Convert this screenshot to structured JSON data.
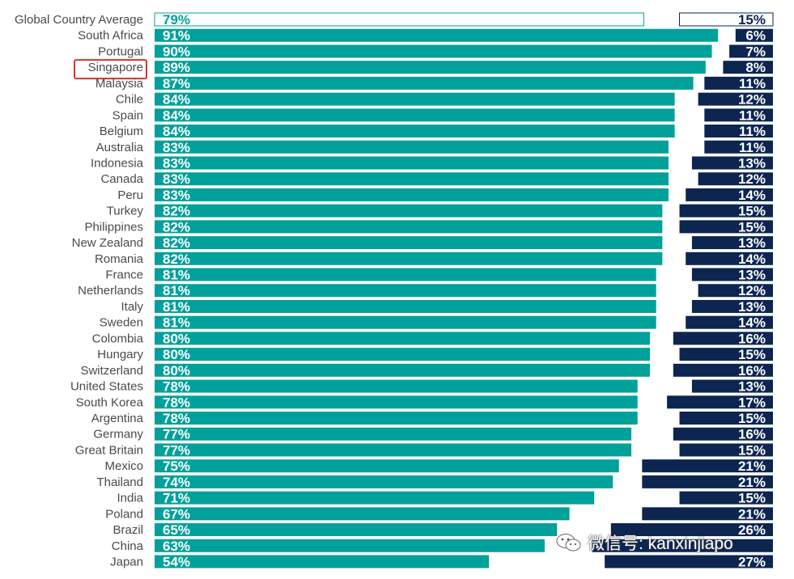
{
  "chart_data": {
    "type": "bar",
    "orientation": "horizontal",
    "highlighted_category": "Singapore",
    "colors": {
      "series_left": "#00a19a",
      "series_right": "#0c2551",
      "highlight_box": "#d9312b",
      "first_row_fill": "#ffffff",
      "label_text": "#4a4a4a"
    },
    "categories": [
      "Global Country Average",
      "South Africa",
      "Portugal",
      "Singapore",
      "Malaysia",
      "Chile",
      "Spain",
      "Belgium",
      "Australia",
      "Indonesia",
      "Canada",
      "Peru",
      "Turkey",
      "Philippines",
      "New Zealand",
      "Romania",
      "France",
      "Netherlands",
      "Italy",
      "Sweden",
      "Colombia",
      "Hungary",
      "Switzerland",
      "United States",
      "South Korea",
      "Argentina",
      "Germany",
      "Great Britain",
      "Mexico",
      "Thailand",
      "India",
      "Poland",
      "Brazil",
      "China",
      "Japan"
    ],
    "series": [
      {
        "values": [
          79,
          91,
          90,
          89,
          87,
          84,
          84,
          84,
          83,
          83,
          83,
          83,
          82,
          82,
          82,
          82,
          81,
          81,
          81,
          81,
          80,
          80,
          80,
          78,
          78,
          78,
          77,
          77,
          75,
          74,
          71,
          67,
          65,
          63,
          54
        ],
        "labels": [
          "79%",
          "91%",
          "90%",
          "89%",
          "87%",
          "84%",
          "84%",
          "84%",
          "83%",
          "83%",
          "83%",
          "83%",
          "82%",
          "82%",
          "82%",
          "82%",
          "81%",
          "81%",
          "81%",
          "81%",
          "80%",
          "80%",
          "80%",
          "78%",
          "78%",
          "78%",
          "77%",
          "77%",
          "75%",
          "74%",
          "71%",
          "67%",
          "65%",
          "63%",
          "54%"
        ]
      },
      {
        "values": [
          15,
          6,
          7,
          8,
          11,
          12,
          11,
          11,
          11,
          13,
          12,
          14,
          15,
          15,
          13,
          14,
          13,
          12,
          13,
          14,
          16,
          15,
          16,
          13,
          17,
          15,
          16,
          15,
          21,
          21,
          15,
          21,
          26,
          29,
          27
        ],
        "labels": [
          "15%",
          "6%",
          "7%",
          "8%",
          "11%",
          "12%",
          "11%",
          "11%",
          "11%",
          "13%",
          "12%",
          "14%",
          "15%",
          "15%",
          "13%",
          "14%",
          "13%",
          "12%",
          "13%",
          "14%",
          "16%",
          "15%",
          "16%",
          "13%",
          "17%",
          "15%",
          "16%",
          "15%",
          "21%",
          "21%",
          "15%",
          "21%",
          "26%",
          "",
          "27%"
        ]
      }
    ]
  },
  "watermark": {
    "text": "微信号: kanxinjiapo",
    "icon": "wechat-icon"
  }
}
